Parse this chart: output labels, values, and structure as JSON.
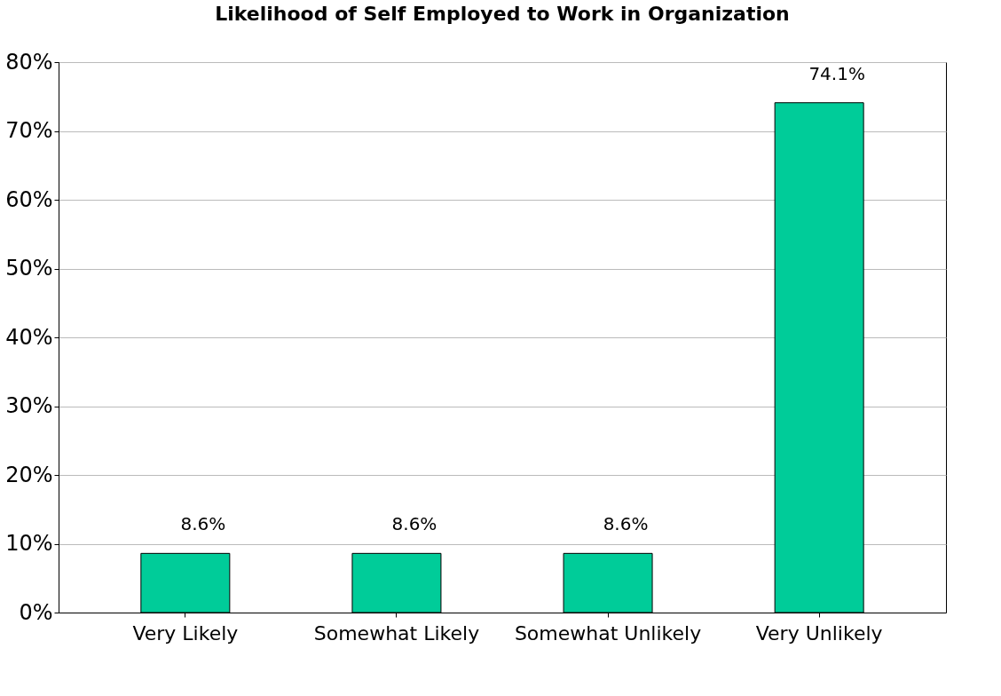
{
  "chart_data": {
    "type": "bar",
    "title": "Likelihood of Self Employed to Work in Organization",
    "categories": [
      "Very Likely",
      "Somewhat Likely",
      "Somewhat Unlikely",
      "Very Unlikely"
    ],
    "values": [
      8.6,
      8.6,
      8.6,
      74.1
    ],
    "color": "#00cc99",
    "value_labels": [
      "8.6%",
      "8.6%",
      "8.6%",
      "74.1%"
    ],
    "ylim": [
      0,
      80
    ],
    "yticks": [
      {
        "value": 0,
        "label": "0%"
      },
      {
        "value": 10,
        "label": "10%"
      },
      {
        "value": 20,
        "label": "20%"
      },
      {
        "value": 30,
        "label": "30%"
      },
      {
        "value": 40,
        "label": "40%"
      },
      {
        "value": 50,
        "label": "50%"
      },
      {
        "value": 60,
        "label": "60%"
      },
      {
        "value": 70,
        "label": "70%"
      },
      {
        "value": 80,
        "label": "80%"
      }
    ],
    "grid": "y"
  }
}
